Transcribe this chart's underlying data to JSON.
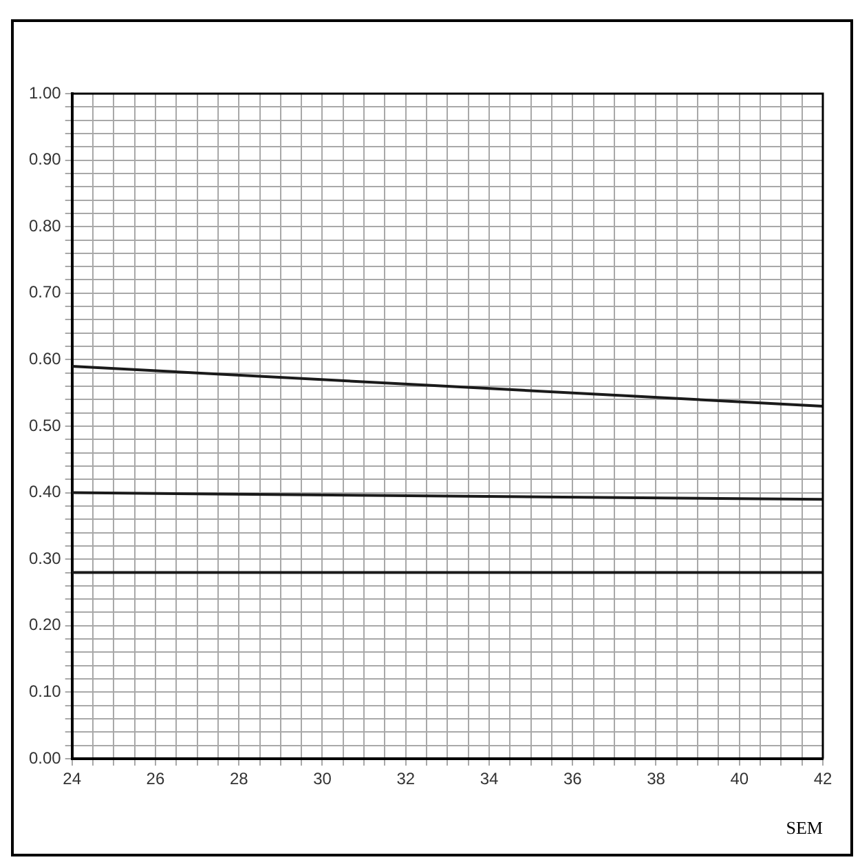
{
  "chart_data": {
    "type": "line",
    "xlabel": "SEM",
    "x": [
      24,
      42
    ],
    "series": [
      {
        "color": "#1a1a1a",
        "values": [
          0.59,
          0.53
        ]
      },
      {
        "color": "#1a1a1a",
        "values": [
          0.4,
          0.39
        ]
      },
      {
        "color": "#1a1a1a",
        "values": [
          0.28,
          0.28
        ]
      }
    ],
    "xlim": [
      24,
      42
    ],
    "xticks": [
      24,
      {
        "value": 24.5,
        "label": null
      },
      {
        "value": 25,
        "label": null
      },
      {
        "value": 25.5,
        "label": null
      },
      26,
      {
        "value": 26.5,
        "label": null
      },
      {
        "value": 27,
        "label": null
      },
      {
        "value": 27.5,
        "label": null
      },
      28,
      {
        "value": 28.5,
        "label": null
      },
      {
        "value": 29,
        "label": null
      },
      {
        "value": 29.5,
        "label": null
      },
      30,
      {
        "value": 30.5,
        "label": null
      },
      {
        "value": 31,
        "label": null
      },
      {
        "value": 31.5,
        "label": null
      },
      32,
      {
        "value": 32.5,
        "label": null
      },
      {
        "value": 33,
        "label": null
      },
      {
        "value": 33.5,
        "label": null
      },
      34,
      {
        "value": 34.5,
        "label": null
      },
      {
        "value": 35,
        "label": null
      },
      {
        "value": 35.5,
        "label": null
      },
      36,
      {
        "value": 36.5,
        "label": null
      },
      {
        "value": 37,
        "label": null
      },
      {
        "value": 37.5,
        "label": null
      },
      38,
      {
        "value": 38.5,
        "label": null
      },
      {
        "value": 39,
        "label": null
      },
      {
        "value": 39.5,
        "label": null
      },
      40,
      {
        "value": 40.5,
        "label": null
      },
      {
        "value": 41,
        "label": null
      },
      {
        "value": 41.5,
        "label": null
      },
      42
    ],
    "ylim": [
      0,
      1
    ],
    "yticks": [
      {
        "value": 0,
        "label": "0.00"
      },
      {
        "value": 0.02,
        "label": null
      },
      {
        "value": 0.04,
        "label": null
      },
      {
        "value": 0.06,
        "label": null
      },
      {
        "value": 0.08,
        "label": null
      },
      {
        "value": 0.1,
        "label": "0.10"
      },
      {
        "value": 0.12,
        "label": null
      },
      {
        "value": 0.14,
        "label": null
      },
      {
        "value": 0.16,
        "label": null
      },
      {
        "value": 0.18,
        "label": null
      },
      {
        "value": 0.2,
        "label": "0.20"
      },
      {
        "value": 0.22,
        "label": null
      },
      {
        "value": 0.24,
        "label": null
      },
      {
        "value": 0.26,
        "label": null
      },
      {
        "value": 0.28,
        "label": null
      },
      {
        "value": 0.3,
        "label": "0.30"
      },
      {
        "value": 0.32,
        "label": null
      },
      {
        "value": 0.34,
        "label": null
      },
      {
        "value": 0.36,
        "label": null
      },
      {
        "value": 0.38,
        "label": null
      },
      {
        "value": 0.4,
        "label": "0.40"
      },
      {
        "value": 0.42,
        "label": null
      },
      {
        "value": 0.44,
        "label": null
      },
      {
        "value": 0.46,
        "label": null
      },
      {
        "value": 0.48,
        "label": null
      },
      {
        "value": 0.5,
        "label": "0.50"
      },
      {
        "value": 0.52,
        "label": null
      },
      {
        "value": 0.54,
        "label": null
      },
      {
        "value": 0.56,
        "label": null
      },
      {
        "value": 0.58,
        "label": null
      },
      {
        "value": 0.6,
        "label": "0.60"
      },
      {
        "value": 0.62,
        "label": null
      },
      {
        "value": 0.64,
        "label": null
      },
      {
        "value": 0.66,
        "label": null
      },
      {
        "value": 0.68,
        "label": null
      },
      {
        "value": 0.7,
        "label": "0.70"
      },
      {
        "value": 0.72,
        "label": null
      },
      {
        "value": 0.74,
        "label": null
      },
      {
        "value": 0.76,
        "label": null
      },
      {
        "value": 0.78,
        "label": null
      },
      {
        "value": 0.8,
        "label": "0.80"
      },
      {
        "value": 0.82,
        "label": null
      },
      {
        "value": 0.84,
        "label": null
      },
      {
        "value": 0.86,
        "label": null
      },
      {
        "value": 0.88,
        "label": null
      },
      {
        "value": 0.9,
        "label": "0.90"
      },
      {
        "value": 0.92,
        "label": null
      },
      {
        "value": 0.94,
        "label": null
      },
      {
        "value": 0.96,
        "label": null
      },
      {
        "value": 0.98,
        "label": null
      },
      {
        "value": 1,
        "label": "1.00"
      }
    ],
    "grid": true,
    "legend": false,
    "marker": "none",
    "line_style": "solid"
  }
}
